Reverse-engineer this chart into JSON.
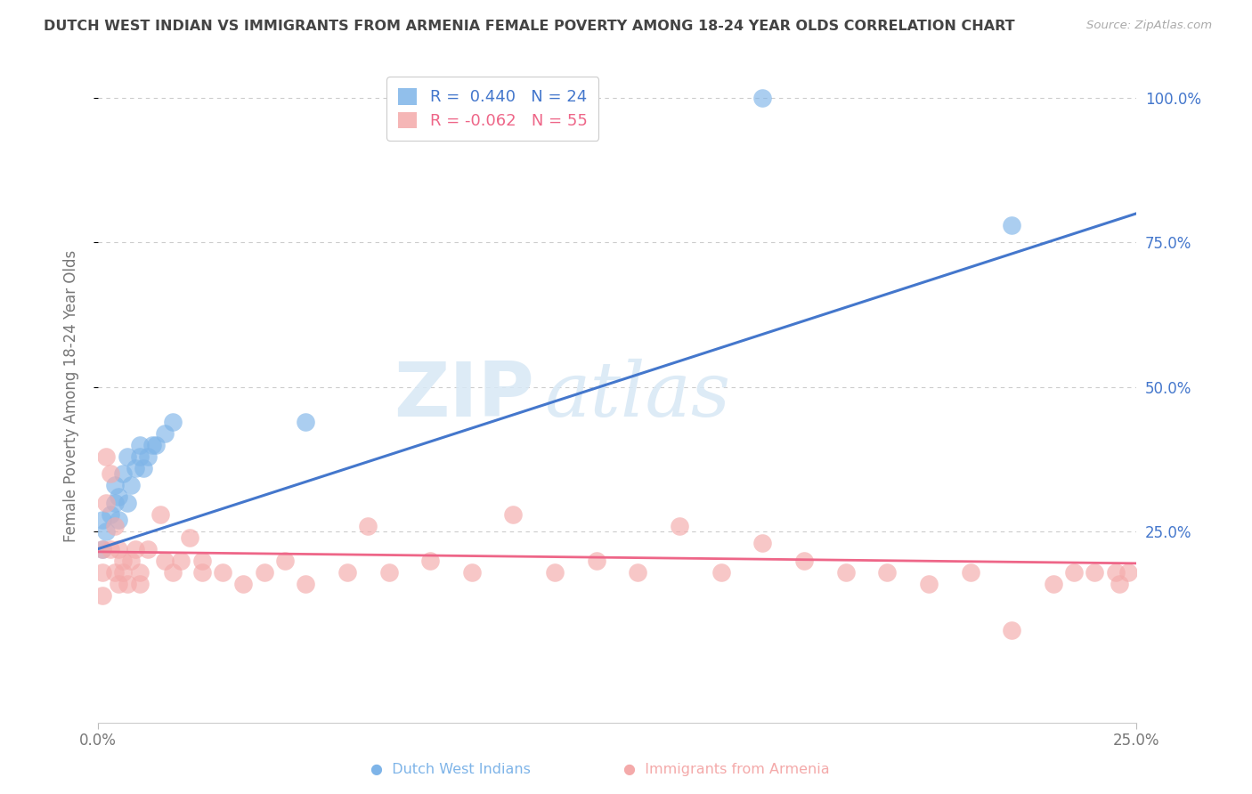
{
  "title": "DUTCH WEST INDIAN VS IMMIGRANTS FROM ARMENIA FEMALE POVERTY AMONG 18-24 YEAR OLDS CORRELATION CHART",
  "source": "Source: ZipAtlas.com",
  "ylabel": "Female Poverty Among 18-24 Year Olds",
  "ytick_labels": [
    "25.0%",
    "50.0%",
    "75.0%",
    "100.0%"
  ],
  "ytick_values": [
    0.25,
    0.5,
    0.75,
    1.0
  ],
  "xlim": [
    0.0,
    0.25
  ],
  "ylim": [
    -0.08,
    1.05
  ],
  "legend_blue_label": "Dutch West Indians",
  "legend_pink_label": "Immigrants from Armenia",
  "legend_blue_R": "R =  0.440",
  "legend_blue_N": "N = 24",
  "legend_pink_R": "R = -0.062",
  "legend_pink_N": "N = 55",
  "blue_color": "#7EB4E8",
  "pink_color": "#F4AAAA",
  "blue_line_color": "#4477CC",
  "pink_line_color": "#EE6688",
  "watermark_zip": "ZIP",
  "watermark_atlas": "atlas",
  "background_color": "#FFFFFF",
  "blue_line_y0": 0.22,
  "blue_line_y1": 0.8,
  "pink_line_y0": 0.215,
  "pink_line_y1": 0.195,
  "blue_x": [
    0.001,
    0.001,
    0.002,
    0.003,
    0.004,
    0.004,
    0.005,
    0.005,
    0.006,
    0.007,
    0.007,
    0.008,
    0.009,
    0.01,
    0.01,
    0.011,
    0.012,
    0.013,
    0.014,
    0.016,
    0.018,
    0.05,
    0.16,
    0.22
  ],
  "blue_y": [
    0.22,
    0.27,
    0.25,
    0.28,
    0.3,
    0.33,
    0.27,
    0.31,
    0.35,
    0.3,
    0.38,
    0.33,
    0.36,
    0.38,
    0.4,
    0.36,
    0.38,
    0.4,
    0.4,
    0.42,
    0.44,
    0.44,
    1.0,
    0.78
  ],
  "pink_x": [
    0.001,
    0.001,
    0.001,
    0.002,
    0.002,
    0.003,
    0.003,
    0.004,
    0.004,
    0.005,
    0.005,
    0.006,
    0.006,
    0.007,
    0.008,
    0.009,
    0.01,
    0.01,
    0.012,
    0.015,
    0.016,
    0.018,
    0.02,
    0.022,
    0.025,
    0.025,
    0.03,
    0.035,
    0.04,
    0.045,
    0.05,
    0.06,
    0.065,
    0.07,
    0.08,
    0.09,
    0.1,
    0.11,
    0.12,
    0.13,
    0.14,
    0.15,
    0.16,
    0.17,
    0.18,
    0.19,
    0.2,
    0.21,
    0.22,
    0.23,
    0.235,
    0.24,
    0.245,
    0.246,
    0.248
  ],
  "pink_y": [
    0.22,
    0.18,
    0.14,
    0.38,
    0.3,
    0.35,
    0.22,
    0.26,
    0.18,
    0.22,
    0.16,
    0.2,
    0.18,
    0.16,
    0.2,
    0.22,
    0.18,
    0.16,
    0.22,
    0.28,
    0.2,
    0.18,
    0.2,
    0.24,
    0.2,
    0.18,
    0.18,
    0.16,
    0.18,
    0.2,
    0.16,
    0.18,
    0.26,
    0.18,
    0.2,
    0.18,
    0.28,
    0.18,
    0.2,
    0.18,
    0.26,
    0.18,
    0.23,
    0.2,
    0.18,
    0.18,
    0.16,
    0.18,
    0.08,
    0.16,
    0.18,
    0.18,
    0.18,
    0.16,
    0.18
  ]
}
